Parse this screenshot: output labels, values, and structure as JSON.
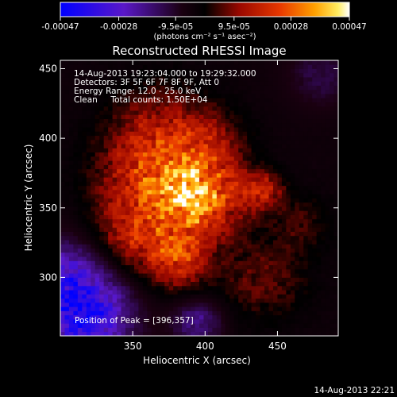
{
  "chart_data": {
    "type": "heatmap",
    "title": "Reconstructed RHESSI Image",
    "xlabel": "Heliocentric X (arcsec)",
    "ylabel": "Heliocentric Y (arcsec)",
    "xlim": [
      300,
      492
    ],
    "ylim": [
      258,
      456
    ],
    "xticks": [
      350,
      400,
      450
    ],
    "yticks": [
      300,
      350,
      400,
      450
    ],
    "colorbar": {
      "ticks": [
        -0.00047,
        -0.00028,
        -9.5e-05,
        9.5e-05,
        0.00028,
        0.00047
      ],
      "tick_labels": [
        "-0.00047",
        "-0.00028",
        "-9.5e-05",
        "9.5e-05",
        "0.00028",
        "0.00047"
      ],
      "range": [
        -0.00047,
        0.00047
      ],
      "colormap": "RHESSI (blue-purple-black-red-orange-yellow-white)"
    },
    "units_label": "(photons cm⁻² s⁻¹ asec⁻²)",
    "annotations": {
      "time_range": "14-Aug-2013 19:23:04.000 to 19:29:32.000",
      "detectors": "Detectors: 3F 5F 6F 7F 8F 9F, Att 0",
      "energy": "Energy Range: 12.0 - 25.0 keV",
      "clean": "Clean     Total counts: 1.50E+04",
      "peak": "Position of Peak = [396,357]"
    },
    "peak": [
      396,
      357
    ],
    "sources": [
      {
        "x": 396,
        "y": 357,
        "amp": 1.0,
        "sigma": 20
      },
      {
        "x": 362,
        "y": 372,
        "amp": 0.55,
        "sigma": 26
      },
      {
        "x": 352,
        "y": 330,
        "amp": 0.55,
        "sigma": 20
      },
      {
        "x": 382,
        "y": 312,
        "amp": 0.6,
        "sigma": 14
      },
      {
        "x": 440,
        "y": 362,
        "amp": 0.55,
        "sigma": 10
      },
      {
        "x": 370,
        "y": 405,
        "amp": 0.4,
        "sigma": 24
      },
      {
        "x": 405,
        "y": 395,
        "amp": 0.3,
        "sigma": 18
      },
      {
        "x": 440,
        "y": 300,
        "amp": 0.3,
        "sigma": 22
      },
      {
        "x": 468,
        "y": 340,
        "amp": 0.22,
        "sigma": 14
      }
    ],
    "background_level": -0.12,
    "negative_regions": [
      {
        "x": 305,
        "y": 290,
        "amp": -0.85,
        "sigma": 24
      },
      {
        "x": 318,
        "y": 265,
        "amp": -0.6,
        "sigma": 22
      },
      {
        "x": 395,
        "y": 268,
        "amp": -0.45,
        "sigma": 12
      },
      {
        "x": 480,
        "y": 445,
        "amp": -0.25,
        "sigma": 16
      }
    ]
  },
  "footer": {
    "timestamp": "14-Aug-2013 22:21"
  }
}
